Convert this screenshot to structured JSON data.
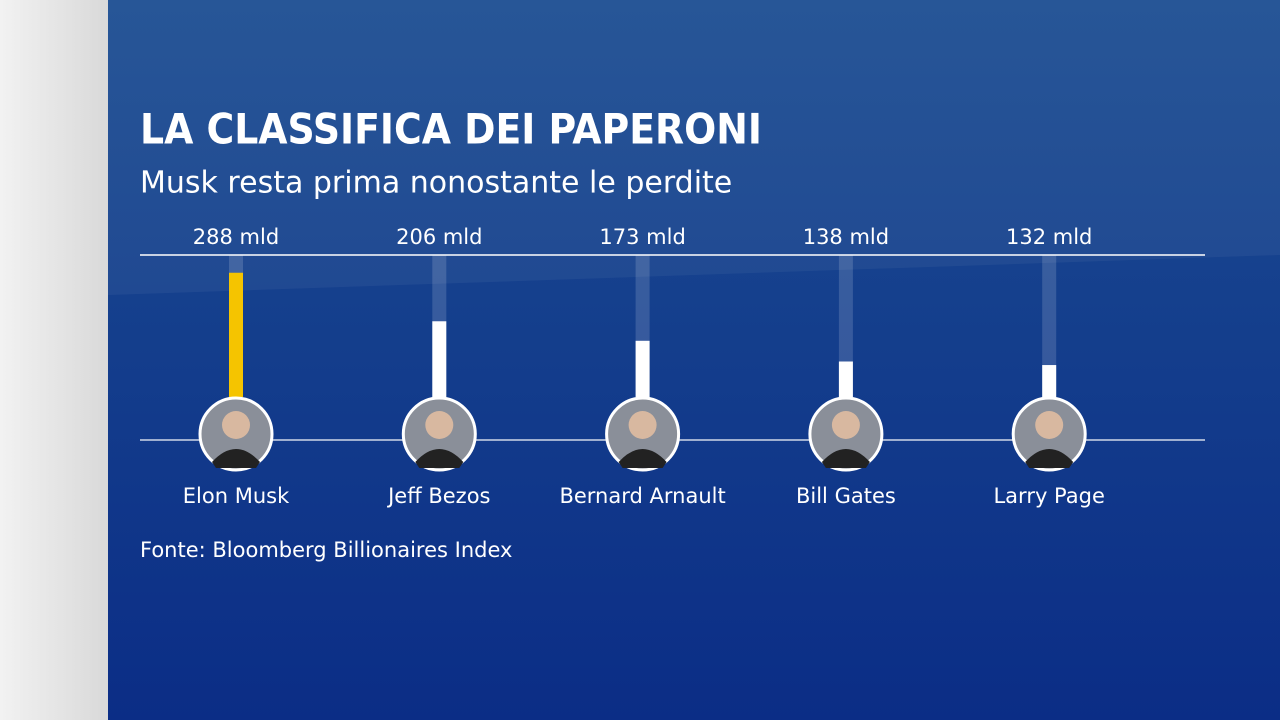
{
  "chart_data": {
    "type": "bar",
    "title": "LA CLASSIFICA DEI PAPERONI",
    "subtitle": "Musk resta prima nonostante le perdite",
    "source": "Fonte: Bloomberg Billionaires Index",
    "categories": [
      "Elon Musk",
      "Jeff Bezos",
      "Bernard Arnault",
      "Bill Gates",
      "Larry Page"
    ],
    "values": [
      288,
      206,
      173,
      138,
      132
    ],
    "value_labels": [
      "288 mld",
      "206 mld",
      "173 mld",
      "138 mld",
      "132 mld"
    ],
    "colors": [
      "#f5c400",
      "#ffffff",
      "#ffffff",
      "#ffffff",
      "#ffffff"
    ],
    "ylim": [
      78,
      318
    ]
  }
}
